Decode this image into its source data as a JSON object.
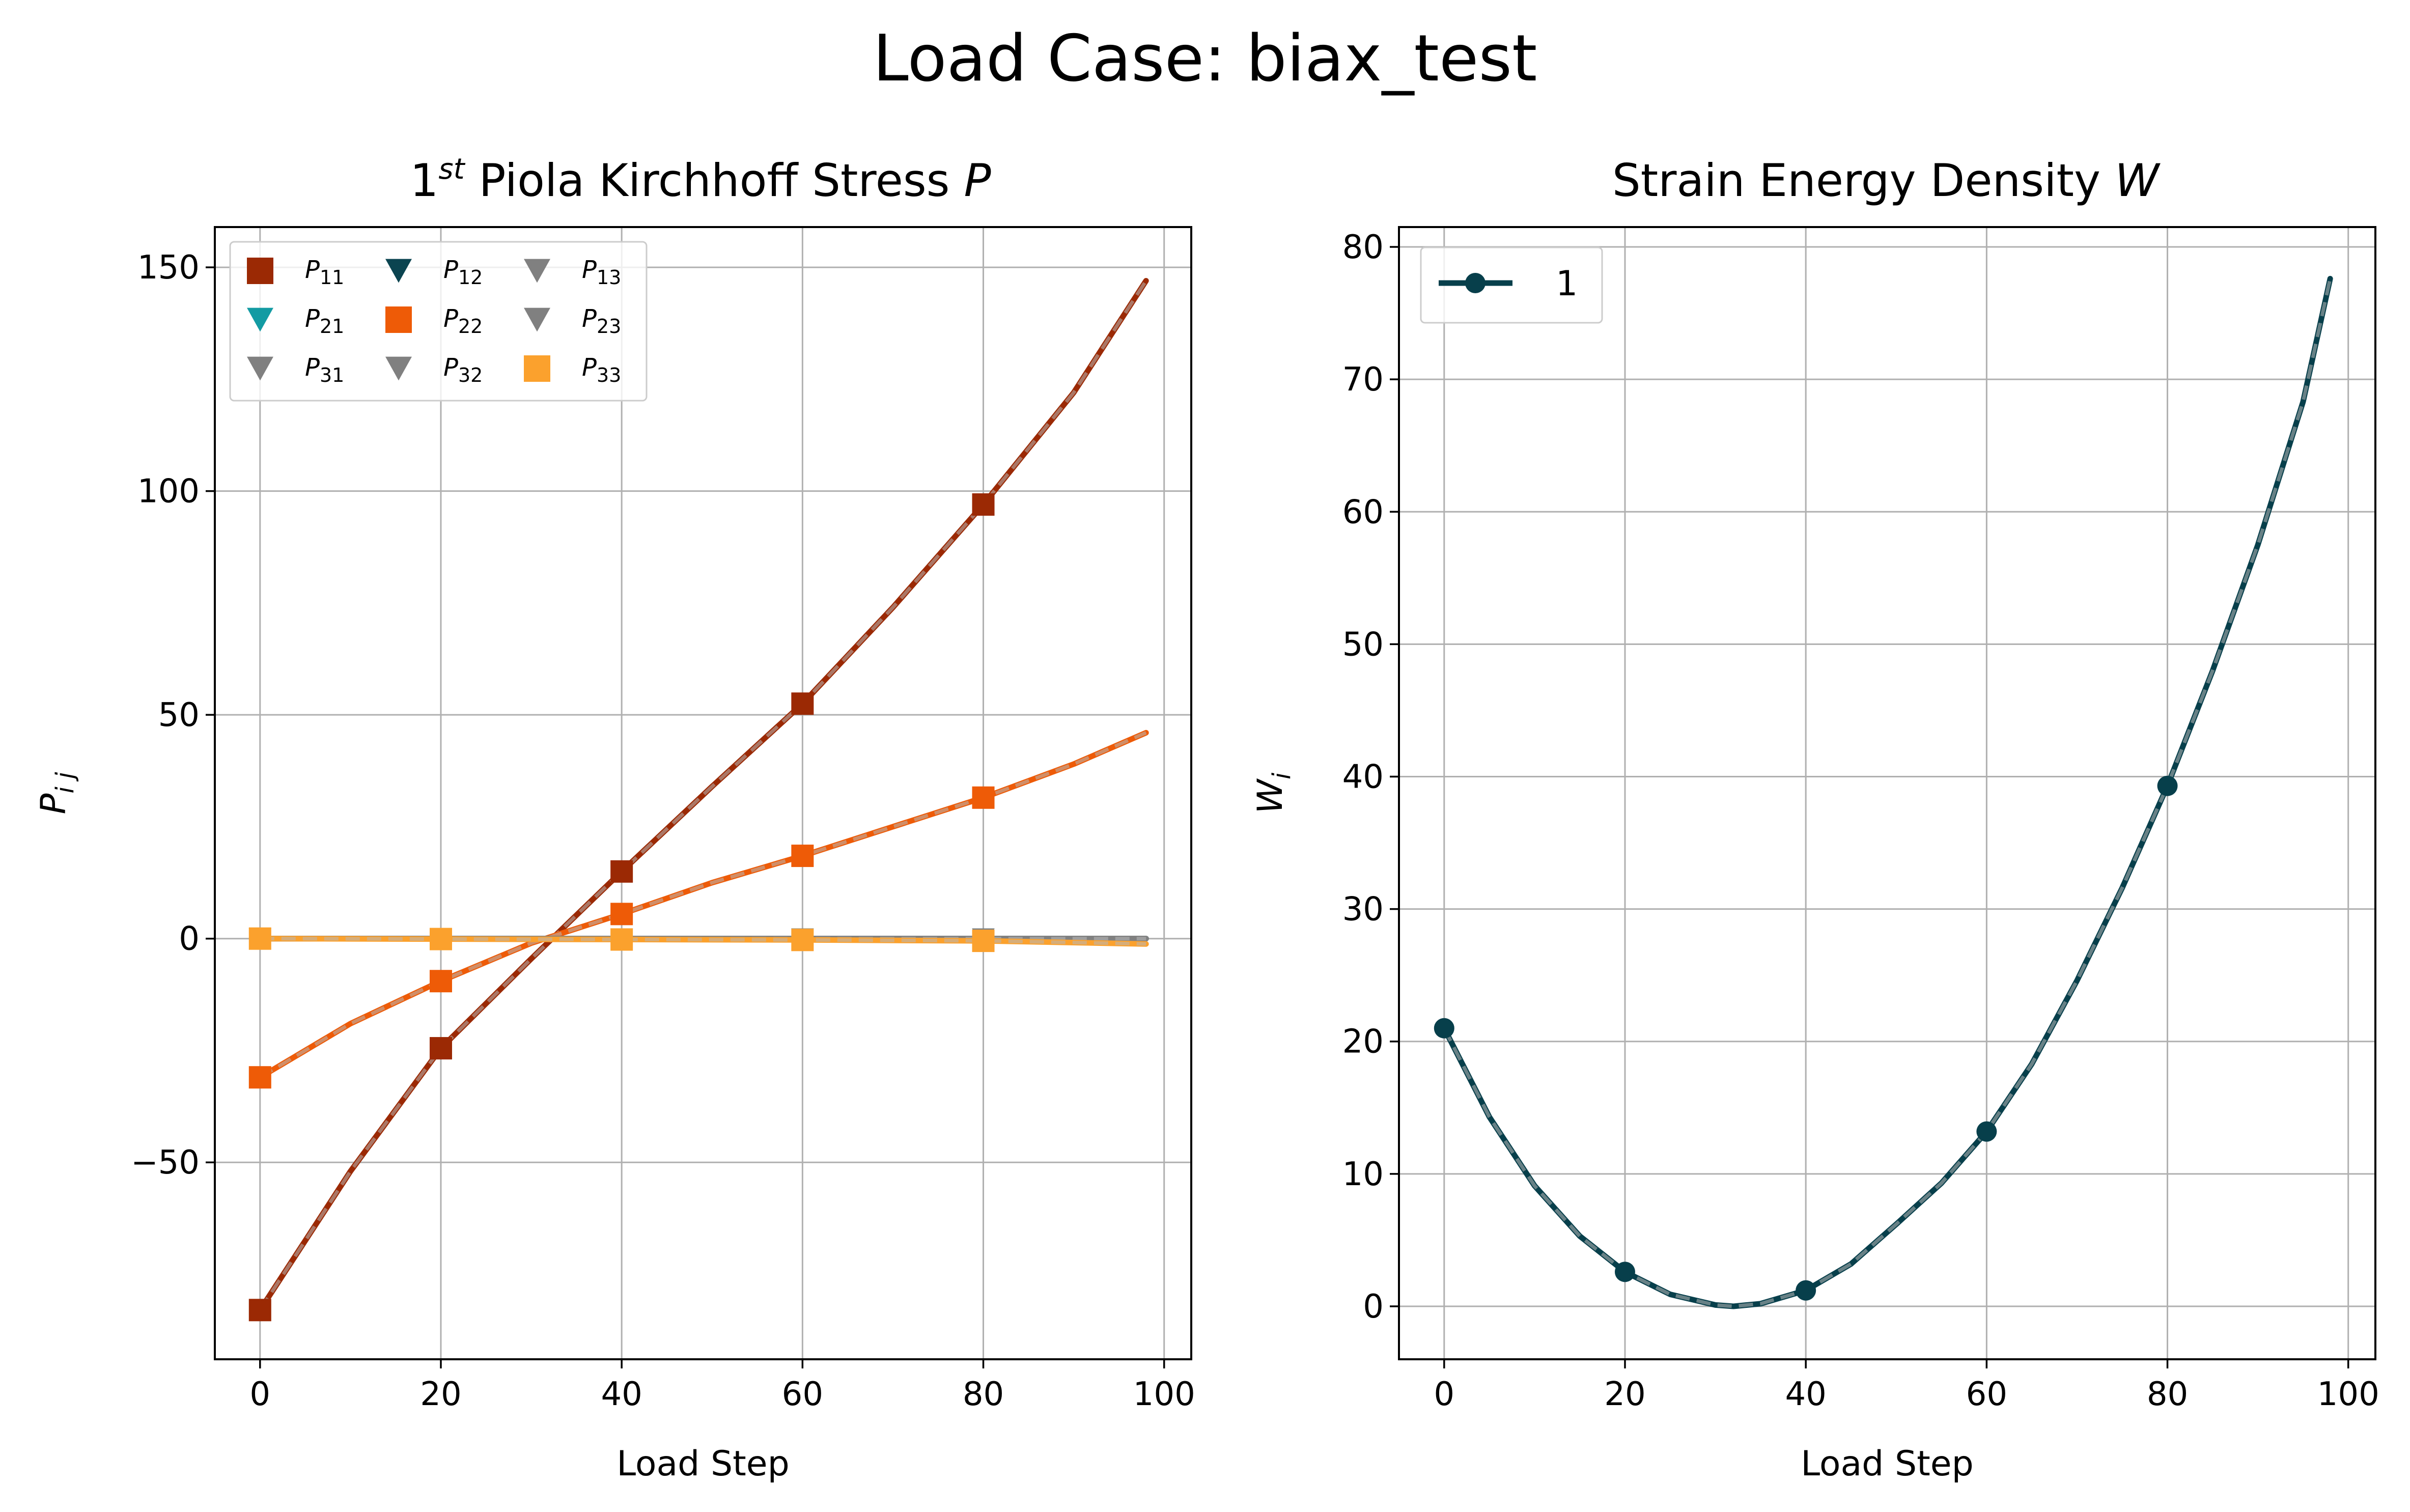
{
  "suptitle": "Load Case: biax_test",
  "colors": {
    "P11": "#9b2904",
    "P12": "#0b4450",
    "P13": "#808080",
    "P21": "#139ba3",
    "P22": "#ee5b07",
    "P23": "#808080",
    "P31": "#808080",
    "P32": "#808080",
    "P33": "#fba12d",
    "W": "#073f4b",
    "grid": "#b0b0b0"
  },
  "chart_data": [
    {
      "type": "line",
      "title": "1st Piola Kirchhoff Stress P",
      "title_parts": {
        "pre": "1",
        "sup": "st",
        "mid": " Piola Kirchhoff Stress ",
        "var": "P"
      },
      "xlabel": "Load Step",
      "ylabel": "P_ij",
      "ylabel_parts": {
        "main": "P",
        "sub": "i j"
      },
      "xlim": [
        -5,
        103
      ],
      "ylim": [
        -94,
        159
      ],
      "xticks": [
        "0",
        "20",
        "40",
        "60",
        "80",
        "100"
      ],
      "xtick_values": [
        0,
        20,
        40,
        60,
        80,
        100
      ],
      "yticks": [
        "−50",
        "0",
        "50",
        "100",
        "150"
      ],
      "ytick_values": [
        -50,
        0,
        50,
        100,
        150
      ],
      "grid": true,
      "legend_position": "top-left",
      "legend_columns": 3,
      "legend": [
        {
          "key": "P11",
          "main": "P",
          "sub": "11",
          "marker": "square"
        },
        {
          "key": "P21",
          "main": "P",
          "sub": "21",
          "marker": "triangle-down"
        },
        {
          "key": "P31",
          "main": "P",
          "sub": "31",
          "marker": "triangle-down"
        },
        {
          "key": "P12",
          "main": "P",
          "sub": "12",
          "marker": "triangle-down"
        },
        {
          "key": "P22",
          "main": "P",
          "sub": "22",
          "marker": "square"
        },
        {
          "key": "P32",
          "main": "P",
          "sub": "32",
          "marker": "triangle-down"
        },
        {
          "key": "P13",
          "main": "P",
          "sub": "13",
          "marker": "triangle-down"
        },
        {
          "key": "P23",
          "main": "P",
          "sub": "23",
          "marker": "triangle-down"
        },
        {
          "key": "P33",
          "main": "P",
          "sub": "33",
          "marker": "square"
        }
      ],
      "series": [
        {
          "key": "P11",
          "marker": "square",
          "x": [
            0,
            10,
            20,
            30,
            40,
            50,
            60,
            70,
            80,
            90,
            98
          ],
          "y": [
            -83,
            -52,
            -24.5,
            -4.5,
            15,
            34,
            52.5,
            74,
            97,
            122,
            147
          ],
          "marker_x": [
            0,
            20,
            40,
            60,
            80
          ],
          "marker_y": [
            -83,
            -24.5,
            15,
            52.5,
            97
          ]
        },
        {
          "key": "P22",
          "marker": "square",
          "x": [
            0,
            10,
            20,
            30,
            40,
            50,
            60,
            70,
            80,
            90,
            98
          ],
          "y": [
            -31,
            -19,
            -9.5,
            -1,
            5.5,
            12.5,
            18.5,
            25,
            31.5,
            39,
            46
          ],
          "marker_x": [
            0,
            20,
            40,
            60,
            80
          ],
          "marker_y": [
            -31,
            -9.5,
            5.5,
            18.5,
            31.5
          ]
        },
        {
          "key": "P12",
          "marker": "triangle-down",
          "x": [
            0,
            98
          ],
          "y": [
            0,
            0
          ],
          "marker_x": [
            0,
            20,
            40,
            60,
            80
          ],
          "marker_y": [
            0,
            0,
            0,
            0,
            0
          ]
        },
        {
          "key": "P21",
          "marker": "triangle-down",
          "x": [
            0,
            98
          ],
          "y": [
            0,
            0
          ],
          "marker_x": [
            0,
            20,
            40,
            60,
            80
          ],
          "marker_y": [
            0,
            0,
            0,
            0,
            0
          ]
        },
        {
          "key": "P13",
          "marker": "triangle-down",
          "x": [
            0,
            98
          ],
          "y": [
            0,
            0
          ],
          "marker_x": [
            0,
            20,
            40,
            60,
            80
          ],
          "marker_y": [
            0,
            0,
            0,
            0,
            0
          ]
        },
        {
          "key": "P23",
          "marker": "triangle-down",
          "x": [
            0,
            98
          ],
          "y": [
            0,
            0
          ],
          "marker_x": [
            0,
            20,
            40,
            60,
            80
          ],
          "marker_y": [
            0,
            0,
            0,
            0,
            0
          ]
        },
        {
          "key": "P31",
          "marker": "triangle-down",
          "x": [
            0,
            98
          ],
          "y": [
            0,
            0
          ],
          "marker_x": [
            0,
            20,
            40,
            60,
            80
          ],
          "marker_y": [
            0,
            0,
            0,
            0,
            0
          ]
        },
        {
          "key": "P32",
          "marker": "triangle-down",
          "x": [
            0,
            98
          ],
          "y": [
            0,
            0
          ],
          "marker_x": [
            0,
            20,
            40,
            60,
            80
          ],
          "marker_y": [
            0,
            0,
            0,
            0,
            0
          ]
        },
        {
          "key": "P33",
          "marker": "square",
          "x": [
            0,
            20,
            40,
            60,
            80,
            98
          ],
          "y": [
            0,
            -0.1,
            -0.2,
            -0.3,
            -0.5,
            -1.2
          ],
          "marker_x": [
            0,
            20,
            40,
            60,
            80
          ],
          "marker_y": [
            0,
            -0.1,
            -0.2,
            -0.3,
            -0.5
          ]
        }
      ]
    },
    {
      "type": "line",
      "title": "Strain Energy Density W",
      "title_parts": {
        "pre": "Strain Energy Density ",
        "var": "W"
      },
      "xlabel": "Load Step",
      "ylabel": "W_i",
      "ylabel_parts": {
        "main": "W",
        "sub": "i"
      },
      "xlim": [
        -5,
        103
      ],
      "ylim": [
        -4,
        81.5
      ],
      "xticks": [
        "0",
        "20",
        "40",
        "60",
        "80",
        "100"
      ],
      "xtick_values": [
        0,
        20,
        40,
        60,
        80,
        100
      ],
      "yticks": [
        "0",
        "10",
        "20",
        "30",
        "40",
        "50",
        "60",
        "70",
        "80"
      ],
      "ytick_values": [
        0,
        10,
        20,
        30,
        40,
        50,
        60,
        70,
        80
      ],
      "grid": true,
      "legend_position": "top-left",
      "legend": [
        {
          "key": "W",
          "label": "1",
          "marker": "circle"
        }
      ],
      "series": [
        {
          "key": "W",
          "name": "1",
          "marker": "circle",
          "x": [
            0,
            5,
            10,
            15,
            20,
            25,
            30,
            32,
            35,
            40,
            45,
            50,
            55,
            60,
            65,
            70,
            75,
            80,
            85,
            90,
            95,
            98
          ],
          "y": [
            21,
            14.3,
            9.1,
            5.3,
            2.6,
            0.9,
            0.1,
            0,
            0.2,
            1.2,
            3.2,
            6.2,
            9.3,
            13.2,
            18.3,
            24.6,
            31.6,
            39.3,
            48,
            57.5,
            68.3,
            77.6
          ],
          "marker_x": [
            0,
            20,
            40,
            60,
            80
          ],
          "marker_y": [
            21,
            2.6,
            1.2,
            13.2,
            39.3
          ]
        }
      ]
    }
  ]
}
